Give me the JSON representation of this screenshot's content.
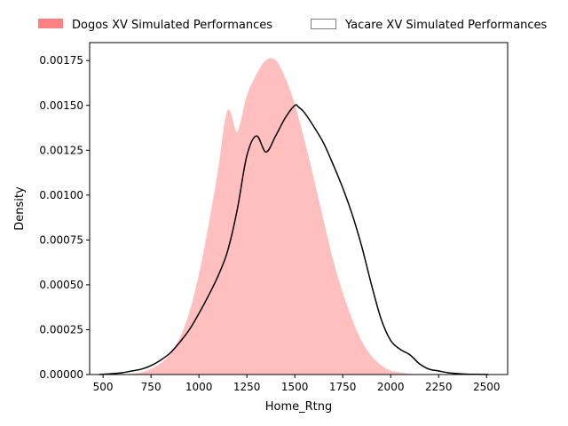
{
  "chart_data": {
    "type": "area",
    "xlabel": "Home_Rtng",
    "ylabel": "Density",
    "xlim": [
      430,
      2610
    ],
    "ylim": [
      0,
      0.00185
    ],
    "xticks": [
      500,
      750,
      1000,
      1250,
      1500,
      1750,
      2000,
      2250,
      2500
    ],
    "xtick_labels": [
      "500",
      "750",
      "1000",
      "1250",
      "1500",
      "1750",
      "2000",
      "2250",
      "2500"
    ],
    "yticks": [
      0,
      0.00025,
      0.0005,
      0.00075,
      0.001,
      0.00125,
      0.0015,
      0.00175
    ],
    "ytick_labels": [
      "0.00000",
      "0.00025",
      "0.00050",
      "0.00075",
      "0.00100",
      "0.00125",
      "0.00150",
      "0.00175"
    ],
    "legend_position": "top",
    "grid": false,
    "series": [
      {
        "name": "Dogos XV Simulated Performances",
        "style": "filled",
        "color": "#ff8080",
        "fill_color": "#ffbfbf",
        "x": [
          640,
          700,
          750,
          800,
          850,
          900,
          950,
          1000,
          1050,
          1100,
          1150,
          1200,
          1250,
          1300,
          1350,
          1400,
          1450,
          1500,
          1550,
          1600,
          1650,
          1700,
          1750,
          1800,
          1850,
          1900,
          1950,
          2000,
          2050,
          2100,
          2150
        ],
        "y": [
          0,
          1e-05,
          3e-05,
          6e-05,
          0.00011,
          0.0002,
          0.00034,
          0.00055,
          0.00082,
          0.00113,
          0.00147,
          0.00135,
          0.00155,
          0.00167,
          0.00175,
          0.00175,
          0.00165,
          0.0015,
          0.0013,
          0.00108,
          0.00085,
          0.00063,
          0.00045,
          0.0003,
          0.00018,
          0.0001,
          5e-05,
          2e-05,
          1e-05,
          2e-06,
          0
        ]
      },
      {
        "name": "Yacare XV Simulated Performances",
        "style": "line",
        "color": "#000000",
        "legend_edge_color": "#808080",
        "x": [
          480,
          550,
          600,
          650,
          700,
          750,
          800,
          850,
          900,
          950,
          1000,
          1050,
          1100,
          1150,
          1200,
          1250,
          1300,
          1350,
          1400,
          1450,
          1500,
          1520,
          1550,
          1600,
          1650,
          1700,
          1750,
          1800,
          1850,
          1900,
          1950,
          2000,
          2050,
          2100,
          2150,
          2200,
          2250,
          2300,
          2350,
          2400,
          2450,
          2510
        ],
        "y": [
          0,
          5e-06,
          1e-05,
          2e-05,
          3e-05,
          5e-05,
          8e-05,
          0.00012,
          0.00018,
          0.00025,
          0.00034,
          0.00044,
          0.00055,
          0.00069,
          0.00092,
          0.00122,
          0.00133,
          0.00124,
          0.00133,
          0.00143,
          0.0015,
          0.00149,
          0.00146,
          0.00138,
          0.00129,
          0.00117,
          0.00104,
          0.00089,
          0.00071,
          0.0005,
          0.00031,
          0.00019,
          0.00014,
          0.00011,
          6e-05,
          3e-05,
          2e-05,
          1e-05,
          5e-06,
          2e-06,
          1e-06,
          0
        ]
      }
    ]
  }
}
